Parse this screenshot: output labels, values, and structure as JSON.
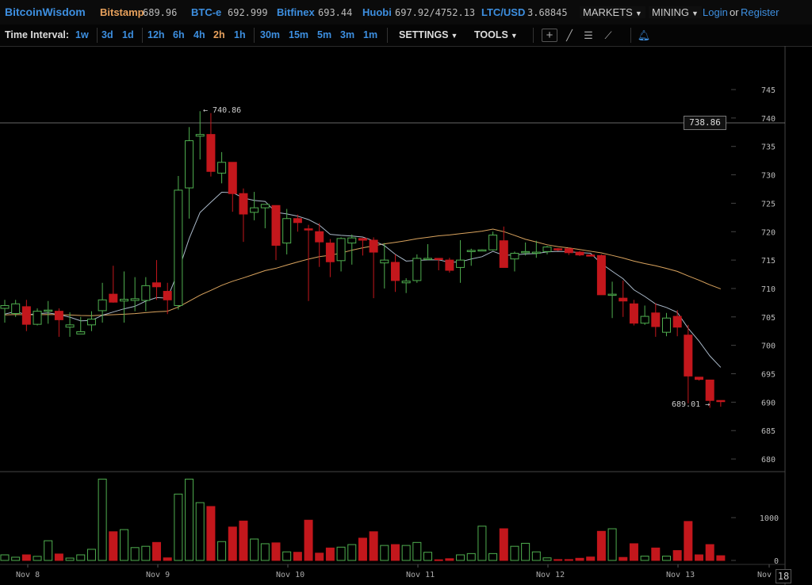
{
  "header": {
    "logo": "BitcoinWisdom",
    "markets": [
      {
        "name": "Bitstamp",
        "value": "689.96",
        "color": "#e8a15c"
      },
      {
        "name": "BTC-e",
        "value": "692.999",
        "color": "#3d8fe0"
      },
      {
        "name": "Bitfinex",
        "value": "693.44",
        "color": "#3d8fe0"
      },
      {
        "name": "Huobi",
        "value": "697.92/4752.13",
        "color": "#3d8fe0"
      },
      {
        "name": "LTC/USD",
        "value": "3.68845",
        "color": "#3d8fe0"
      }
    ],
    "markets_menu": "MARKETS",
    "mining_menu": "MINING",
    "login": "Login",
    "or": "or",
    "register": "Register"
  },
  "toolbar": {
    "time_interval_label": "Time Interval:",
    "intervals": [
      "1w",
      "3d",
      "1d",
      "12h",
      "6h",
      "4h",
      "2h",
      "1h",
      "30m",
      "15m",
      "5m",
      "3m",
      "1m"
    ],
    "selected_interval": "2h",
    "settings": "SETTINGS",
    "tools": "TOOLS",
    "tool_icons": [
      "crosshair-icon",
      "line-icon",
      "parallel-lines-icon",
      "fan-icon",
      "bell-icon"
    ]
  },
  "chart_data": {
    "type": "candlestick",
    "colors": {
      "up": "#4fae4f",
      "down": "#c3171c",
      "fast_ma": "#a9b8c8",
      "slow_ma": "#d9a35e"
    },
    "price_ticks": [
      745,
      740,
      735,
      730,
      725,
      720,
      715,
      710,
      705,
      700,
      695,
      690,
      685,
      680
    ],
    "volume_ticks": [
      {
        "value": 1000,
        "label": "1000"
      },
      {
        "value": 0,
        "label": "0"
      }
    ],
    "x_labels": [
      "Nov 8",
      "Nov 9",
      "Nov 10",
      "Nov 11",
      "Nov 12",
      "Nov 13",
      "Nov"
    ],
    "countdown": "18",
    "high_marker": "740.86",
    "low_marker": "689.01",
    "crosshair_price": "738.86",
    "candles": [
      [
        706.5,
        708,
        704,
        707
      ],
      [
        705.6,
        708,
        705,
        707.3
      ],
      [
        706.8,
        708,
        702.5,
        703.7
      ],
      [
        703.7,
        706.5,
        703.5,
        706
      ],
      [
        706,
        707.8,
        703.8,
        706.2
      ],
      [
        706,
        706.5,
        701.5,
        704.5
      ],
      [
        703.2,
        705.8,
        701.5,
        703.6
      ],
      [
        702,
        705,
        702,
        702.4
      ],
      [
        703.6,
        706,
        702.5,
        704.6
      ],
      [
        706.1,
        711,
        704,
        708
      ],
      [
        709,
        714,
        707.5,
        707.6
      ],
      [
        707.8,
        713,
        704,
        708.1
      ],
      [
        707.9,
        712,
        706,
        708.2
      ],
      [
        707.9,
        712,
        706,
        710.5
      ],
      [
        711,
        715,
        708,
        710.3
      ],
      [
        709.5,
        711,
        705.5,
        708
      ],
      [
        707,
        729.8,
        706.3,
        727.3
      ],
      [
        727.7,
        738.4,
        722.3,
        736
      ],
      [
        736.8,
        741.2,
        732.7,
        737.1
      ],
      [
        737.1,
        740.86,
        729.7,
        730.6
      ],
      [
        730.3,
        734,
        728.5,
        732.2
      ],
      [
        732.2,
        732.2,
        723.5,
        726.7
      ],
      [
        726.7,
        727.6,
        718.2,
        723.1
      ],
      [
        723.4,
        727,
        722,
        724.2
      ],
      [
        724.2,
        724.8,
        720.6,
        724.8
      ],
      [
        724.6,
        724.6,
        715,
        717.6
      ],
      [
        718,
        724,
        716,
        722.3
      ],
      [
        722.3,
        723,
        720,
        721.6
      ],
      [
        720.5,
        721.2,
        707.8,
        720.3
      ],
      [
        720,
        721.5,
        713.8,
        718.2
      ],
      [
        718,
        718.7,
        712,
        714.7
      ],
      [
        714.9,
        719,
        713,
        718.8
      ],
      [
        718,
        719.5,
        714.2,
        718.9
      ],
      [
        718.8,
        718.9,
        715.8,
        718.5
      ],
      [
        718.5,
        719,
        708.3,
        716.4
      ],
      [
        714.5,
        718,
        710,
        715
      ],
      [
        714.6,
        716,
        709.4,
        711.4
      ],
      [
        711,
        711.8,
        709.2,
        711.3
      ],
      [
        711.4,
        716,
        711,
        715.3
      ],
      [
        715.2,
        717.8,
        715,
        715.3
      ],
      [
        715.3,
        715.3,
        713.2,
        715.1
      ],
      [
        715,
        715.4,
        712.8,
        713.2
      ],
      [
        713.7,
        718.5,
        711,
        715
      ],
      [
        716.5,
        717,
        714,
        716.7
      ],
      [
        716.8,
        716.9,
        716.7,
        716.8
      ],
      [
        716.8,
        720,
        716.7,
        719.4
      ],
      [
        718.4,
        720.9,
        713.7,
        713.7
      ],
      [
        715.2,
        716.5,
        713,
        716.2
      ],
      [
        716.3,
        718.1,
        715.8,
        716.5
      ],
      [
        716.2,
        718.4,
        715.4,
        716.4
      ],
      [
        716.5,
        717.5,
        716,
        717.3
      ],
      [
        717,
        717.1,
        716.6,
        716.8
      ],
      [
        717,
        717.2,
        715.9,
        716.3
      ],
      [
        716.4,
        716.6,
        715.7,
        715.9
      ],
      [
        715.9,
        716,
        715.7,
        715.8
      ],
      [
        715.8,
        716,
        708.9,
        708.9
      ],
      [
        708.8,
        711.2,
        704.8,
        709
      ],
      [
        708.3,
        711.4,
        705,
        707.8
      ],
      [
        707.3,
        708,
        703.5,
        703.9
      ],
      [
        703.9,
        707,
        703.6,
        705.1
      ],
      [
        705.7,
        707.4,
        701.5,
        703.3
      ],
      [
        702.3,
        705.7,
        701.6,
        704.8
      ],
      [
        705.1,
        706.2,
        701.6,
        703.2
      ],
      [
        701.8,
        703.6,
        689.8,
        694.6
      ],
      [
        694.4,
        694.4,
        693.8,
        694
      ],
      [
        693.9,
        693.9,
        689.01,
        690.3
      ],
      [
        690.3,
        690.3,
        689.2,
        690.1
      ]
    ],
    "volumes": [
      130,
      75,
      130,
      95,
      460,
      150,
      55,
      130,
      260,
      1900,
      670,
      720,
      300,
      330,
      420,
      60,
      1550,
      1900,
      1350,
      1260,
      440,
      780,
      920,
      500,
      390,
      410,
      200,
      190,
      940,
      170,
      290,
      310,
      370,
      520,
      670,
      350,
      370,
      350,
      420,
      190,
      15,
      40,
      130,
      160,
      800,
      160,
      740,
      330,
      400,
      200,
      60,
      20,
      20,
      50,
      80,
      680,
      740,
      70,
      390,
      100,
      290,
      100,
      230,
      910,
      130,
      370,
      110
    ]
  }
}
